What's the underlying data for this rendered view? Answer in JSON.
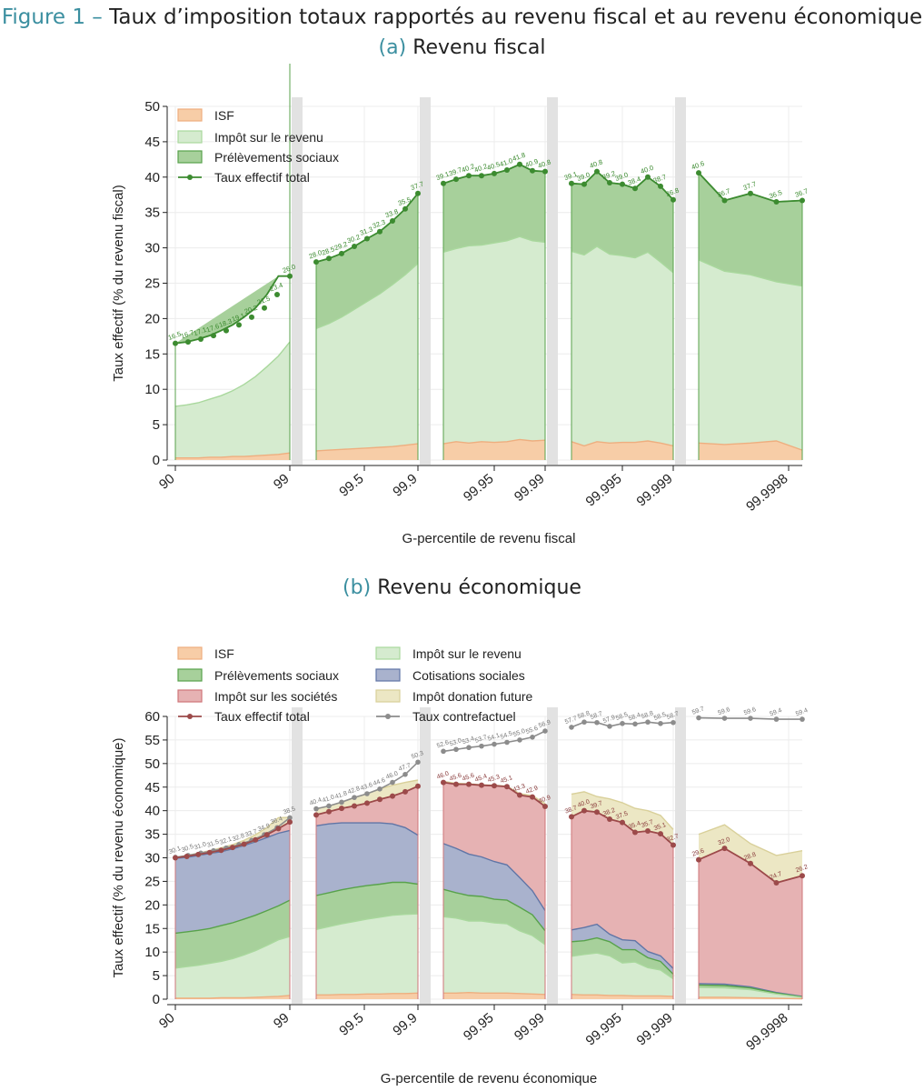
{
  "figure": {
    "label": "Figure 1 –",
    "title": "Taux d’imposition totaux rapportés au revenu fiscal et au revenu économique"
  },
  "colors": {
    "isf": "#f7cda7",
    "isf_line": "#eeae7f",
    "ir": "#d5ebcf",
    "ir_line": "#a9d89d",
    "ps": "#a7d09b",
    "ps_line": "#58a24b",
    "cs": "#a9b2cd",
    "cs_line": "#6075a6",
    "is": "#e6b2b3",
    "is_line": "#cf7579",
    "don": "#ece7c4",
    "don_line": "#d9d09a",
    "total_a": "#3c8b30",
    "total_b": "#9c4a4a",
    "counter": "#8c8c8c",
    "separator": "#e2e2e2",
    "grid": "#ececec"
  },
  "chart_data": [
    {
      "type": "area",
      "panel_label": "(a)",
      "title": "Revenu fiscal",
      "xlabel": "G-percentile de revenu fiscal",
      "ylabel": "Taux effectif (% du revenu fiscal)",
      "ylim": [
        0,
        50
      ],
      "yticks": [
        0,
        5,
        10,
        15,
        20,
        25,
        30,
        35,
        40,
        45,
        50
      ],
      "xtick_labels": [
        "90",
        "99",
        "99.5",
        "99.9",
        "99.95",
        "99.99",
        "99.995",
        "99.999",
        "99.9998"
      ],
      "legend": [
        "ISF",
        "Impôt sur le revenu",
        "Prélèvements sociaux",
        "Taux effectif total"
      ],
      "segments": [
        {
          "isf": [
            0.3,
            0.3,
            0.3,
            0.4,
            0.4,
            0.5,
            0.5,
            0.6,
            0.7,
            0.8,
            1.0
          ],
          "ir": [
            7.6,
            7.8,
            8.1,
            8.6,
            9.1,
            9.8,
            10.7,
            11.8,
            13.2,
            14.7,
            16.7
          ],
          "total": [
            16.5,
            16.7,
            17.1,
            17.6,
            18.3,
            19.1,
            20.2,
            21.5,
            23.4,
            26.0
          ],
          "total_labels": [
            "16.5",
            "16.7",
            "17.1",
            "17.6",
            "18.3",
            "19.1",
            "20.2",
            "21.5",
            "23.4",
            "26.0"
          ]
        },
        {
          "isf": [
            1.3,
            1.4,
            1.5,
            1.6,
            1.7,
            1.8,
            1.9,
            2.1,
            2.3
          ],
          "ir": [
            18.6,
            19.3,
            20.2,
            21.3,
            22.4,
            23.5,
            24.8,
            26.2,
            27.8
          ],
          "total": [
            28.0,
            28.5,
            29.2,
            30.2,
            31.3,
            32.3,
            33.8,
            35.5,
            37.7
          ],
          "total_labels": [
            "28.0",
            "28.5",
            "29.2",
            "30.2",
            "31.3",
            "32.3",
            "33.8",
            "35.5",
            "37.7"
          ]
        },
        {
          "isf": [
            2.3,
            2.6,
            2.4,
            2.6,
            2.5,
            2.6,
            2.9,
            2.7,
            2.8
          ],
          "ir": [
            29.4,
            29.9,
            30.3,
            30.4,
            30.7,
            31.0,
            31.6,
            31.0,
            30.8
          ],
          "total": [
            39.1,
            39.7,
            40.2,
            40.2,
            40.5,
            41.0,
            41.8,
            40.9,
            40.8
          ],
          "total_labels": [
            "39.1",
            "39.7",
            "40.2",
            "40.2",
            "40.5",
            "41.0",
            "41.8",
            "40.9",
            "40.8"
          ]
        },
        {
          "isf": [
            2.6,
            2.0,
            2.6,
            2.4,
            2.5,
            2.5,
            2.7,
            2.4,
            2.0
          ],
          "ir": [
            29.5,
            29.0,
            30.2,
            29.1,
            28.9,
            28.6,
            29.4,
            28.0,
            26.5
          ],
          "total": [
            39.1,
            39.0,
            40.8,
            39.2,
            39.0,
            38.4,
            40.0,
            38.7,
            36.8
          ],
          "total_labels": [
            "39.1",
            "39.0",
            "40.8",
            "39.2",
            "39.0",
            "38.4",
            "40.0",
            "38.7",
            "36.8"
          ]
        },
        {
          "isf": [
            2.4,
            2.2,
            2.4,
            2.7,
            1.4
          ],
          "ir": [
            28.3,
            26.7,
            26.2,
            25.2,
            24.6
          ],
          "total": [
            40.6,
            36.7,
            37.7,
            36.5,
            36.7
          ],
          "total_labels": [
            "40.6",
            "36.7",
            "37.7",
            "36.5",
            "36.7"
          ]
        }
      ]
    },
    {
      "type": "area",
      "panel_label": "(b)",
      "title": "Revenu économique",
      "xlabel": "G-percentile de revenu économique",
      "ylabel": "Taux effectif (% du revenu économique)",
      "ylim": [
        0,
        60
      ],
      "yticks": [
        0,
        5,
        10,
        15,
        20,
        25,
        30,
        35,
        40,
        45,
        50,
        55,
        60
      ],
      "xtick_labels": [
        "90",
        "99",
        "99.5",
        "99.9",
        "99.95",
        "99.99",
        "99.995",
        "99.999",
        "99.9998"
      ],
      "legend": [
        "ISF",
        "Impôt sur le revenu",
        "Prélèvements sociaux",
        "Cotisations sociales",
        "Impôt sur les sociétés",
        "Impôt donation future",
        "Taux effectif total",
        "Taux contrefactuel"
      ],
      "segments": [
        {
          "isf": [
            0.2,
            0.2,
            0.2,
            0.2,
            0.3,
            0.3,
            0.3,
            0.4,
            0.5,
            0.6,
            0.8
          ],
          "ir": [
            6.6,
            6.9,
            7.2,
            7.6,
            8.0,
            8.6,
            9.4,
            10.3,
            11.4,
            12.6,
            13.3
          ],
          "ps": [
            14.0,
            14.3,
            14.6,
            15.0,
            15.6,
            16.2,
            17.0,
            17.8,
            18.8,
            19.8,
            21.0
          ],
          "cs": [
            29.9,
            30.1,
            30.5,
            30.9,
            31.3,
            31.9,
            32.6,
            33.4,
            34.3,
            35.2,
            35.8
          ],
          "is_top": [
            30.0,
            30.3,
            30.7,
            31.1,
            31.6,
            32.2,
            32.9,
            33.8,
            34.9,
            36.2,
            37.6
          ],
          "total": [
            30.0,
            30.3,
            30.7,
            31.1,
            31.6,
            32.2,
            32.9,
            33.8,
            34.9,
            36.2,
            37.6
          ],
          "don_top": [
            30.1,
            30.5,
            31.0,
            31.5,
            32.1,
            32.8,
            33.7,
            34.9,
            36.4,
            38.5,
            38.6
          ],
          "counter": [
            30.1,
            30.5,
            31.0,
            31.5,
            32.1,
            32.8,
            33.7,
            34.9,
            36.4,
            38.5
          ],
          "counter_labels": [
            "30.1",
            "30.5",
            "31.0",
            "31.5",
            "32.1",
            "32.8",
            "33.7",
            "34.9",
            "36.4",
            "38.5"
          ]
        },
        {
          "isf": [
            0.9,
            0.9,
            1.0,
            1.0,
            1.1,
            1.1,
            1.2,
            1.2,
            1.3
          ],
          "ir": [
            14.8,
            15.4,
            16.0,
            16.5,
            17.0,
            17.4,
            17.8,
            18.0,
            18.1
          ],
          "ps": [
            22.0,
            22.6,
            23.2,
            23.7,
            24.1,
            24.4,
            24.8,
            24.8,
            24.4
          ],
          "cs": [
            36.8,
            37.2,
            37.4,
            37.4,
            37.4,
            37.4,
            37.2,
            36.4,
            34.8
          ],
          "is_top": [
            39.1,
            39.8,
            40.5,
            41.0,
            41.6,
            42.4,
            43.1,
            44.0,
            45.2
          ],
          "total": [
            39.1,
            39.8,
            40.5,
            41.0,
            41.6,
            42.4,
            43.1,
            44.0,
            45.2
          ],
          "don_top": [
            40.4,
            41.0,
            41.8,
            42.8,
            43.6,
            44.6,
            45.4,
            46.0,
            46.5
          ],
          "counter": [
            40.4,
            41.0,
            41.8,
            42.8,
            43.6,
            44.6,
            46.0,
            47.7,
            50.3
          ],
          "counter_labels": [
            "40.4",
            "41.0",
            "41.8",
            "42.8",
            "43.6",
            "44.6",
            "46.0",
            "47.7",
            "50.3"
          ]
        },
        {
          "isf": [
            1.3,
            1.3,
            1.4,
            1.3,
            1.3,
            1.3,
            1.2,
            1.1,
            1.0
          ],
          "ir": [
            17.5,
            17.2,
            16.6,
            16.6,
            16.2,
            16.0,
            14.5,
            13.5,
            11.6
          ],
          "ps": [
            23.3,
            22.6,
            22.0,
            21.8,
            21.2,
            21.0,
            19.5,
            17.9,
            14.5
          ],
          "cs": [
            33.0,
            32.0,
            30.8,
            30.2,
            29.2,
            28.5,
            25.8,
            23.0,
            18.8
          ],
          "is_top": [
            46.0,
            45.6,
            45.6,
            45.4,
            45.3,
            45.1,
            43.3,
            42.9,
            40.9
          ],
          "total": [
            46.0,
            45.6,
            45.6,
            45.4,
            45.3,
            45.1,
            43.3,
            42.9,
            40.9
          ],
          "don_top": [
            46.2,
            45.8,
            45.7,
            45.5,
            45.4,
            45.2,
            43.6,
            43.2,
            41.5
          ],
          "counter": [
            52.6,
            53.0,
            53.4,
            53.7,
            54.1,
            54.5,
            55.0,
            55.6,
            56.9
          ],
          "total_labels": [
            "46.0",
            "45.6",
            "45.6",
            "45.4",
            "45.3",
            "45.1",
            "43.3",
            "42.9",
            "40.9"
          ],
          "counter_labels": [
            "52.6",
            "53.0",
            "53.4",
            "53.7",
            "54.1",
            "54.5",
            "55.0",
            "55.6",
            "56.9"
          ]
        },
        {
          "isf": [
            1.0,
            0.9,
            0.9,
            0.8,
            0.8,
            0.7,
            0.7,
            0.7,
            0.6
          ],
          "ir": [
            9.1,
            9.5,
            9.8,
            9.2,
            7.7,
            7.9,
            6.7,
            6.2,
            4.3
          ],
          "ps": [
            12.2,
            12.4,
            13.0,
            12.2,
            10.5,
            10.5,
            8.8,
            8.0,
            5.3
          ],
          "cs": [
            14.7,
            15.2,
            15.9,
            13.8,
            12.6,
            12.4,
            10.1,
            9.2,
            6.5
          ],
          "is_top": [
            38.7,
            40.0,
            39.7,
            38.2,
            37.5,
            35.4,
            35.7,
            35.1,
            32.7
          ],
          "total": [
            38.7,
            40.0,
            39.7,
            38.2,
            37.5,
            35.4,
            35.7,
            35.1,
            32.7
          ],
          "don_top": [
            43.5,
            44.0,
            43.0,
            42.5,
            41.7,
            40.5,
            40.0,
            39.0,
            36.0
          ],
          "counter": [
            57.7,
            58.8,
            58.7,
            57.9,
            58.5,
            58.4,
            58.8,
            58.5,
            58.7
          ],
          "total_labels": [
            "38.7",
            "40.0",
            "39.7",
            "38.2",
            "37.5",
            "35.4",
            "35.7",
            "35.1",
            "32.7"
          ],
          "counter_labels": [
            "57.7",
            "58.8",
            "58.7",
            "57.9",
            "58.5",
            "58.4",
            "58.8",
            "58.5",
            "58.7"
          ]
        },
        {
          "isf": [
            0.4,
            0.4,
            0.3,
            0.2,
            0.1
          ],
          "ir": [
            2.5,
            2.4,
            2.0,
            1.1,
            0.4
          ],
          "ps": [
            3.0,
            2.9,
            2.4,
            1.3,
            0.5
          ],
          "cs": [
            3.3,
            3.2,
            2.6,
            1.4,
            0.6
          ],
          "is_top": [
            29.6,
            32.0,
            28.8,
            24.7,
            26.2
          ],
          "total": [
            29.6,
            32.0,
            28.8,
            24.7,
            26.2
          ],
          "don_top": [
            35.0,
            37.0,
            33.0,
            30.5,
            31.5
          ],
          "counter": [
            59.7,
            59.6,
            59.6,
            59.4,
            59.4
          ],
          "total_labels": [
            "29.6",
            "32.0",
            "28.8",
            "24.7",
            "26.2"
          ],
          "counter_labels": [
            "59.7",
            "59.6",
            "59.6",
            "59.4",
            "59.4"
          ]
        }
      ]
    }
  ]
}
